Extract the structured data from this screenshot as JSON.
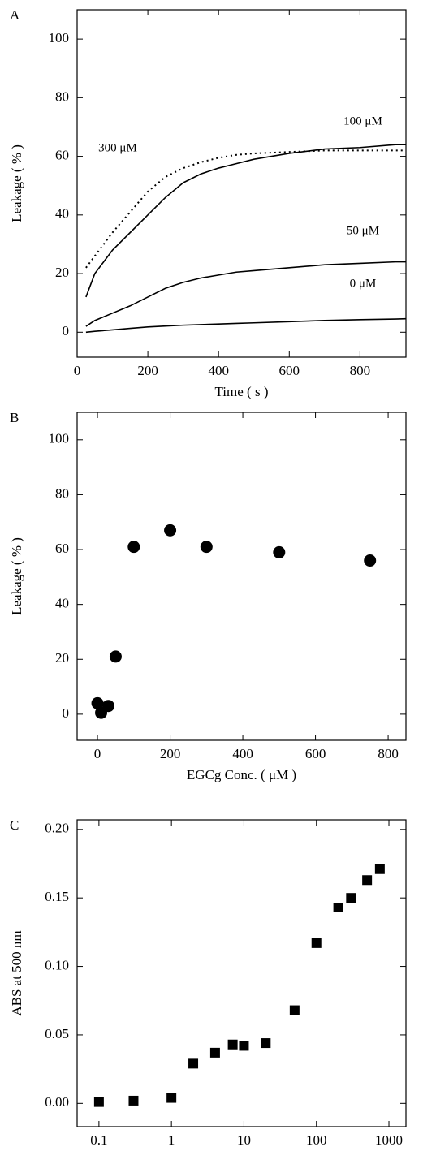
{
  "chart_data": [
    {
      "type": "line",
      "panel": "A",
      "xlabel": "Time ( s )",
      "ylabel": "Leakage ( % )",
      "x": [
        25,
        50,
        100,
        150,
        200,
        250,
        300,
        350,
        400,
        450,
        500,
        600,
        700,
        800,
        900,
        930
      ],
      "series": [
        {
          "name": "300 μM",
          "color": "#000000",
          "line_style": "dotted",
          "values": [
            22,
            26,
            34,
            41,
            48,
            53,
            56,
            58,
            59.5,
            60.5,
            61,
            61.5,
            62,
            62,
            62,
            62
          ]
        },
        {
          "name": "100 μM",
          "color": "#000000",
          "line_style": "solid",
          "values": [
            12,
            20,
            28,
            34,
            40,
            46,
            51,
            54,
            56,
            57.5,
            59,
            61,
            62.5,
            63,
            64,
            64
          ]
        },
        {
          "name": "50 μM",
          "color": "#000000",
          "line_style": "solid",
          "values": [
            2,
            4,
            6.5,
            9,
            12,
            15,
            17,
            18.5,
            19.5,
            20.5,
            21,
            22,
            23,
            23.5,
            24,
            24
          ]
        },
        {
          "name": "0 μM",
          "color": "#000000",
          "line_style": "solid",
          "values": [
            0,
            0.3,
            0.8,
            1.3,
            1.8,
            2.1,
            2.4,
            2.6,
            2.8,
            3,
            3.2,
            3.6,
            4,
            4.3,
            4.5,
            4.6
          ]
        }
      ],
      "xlim": [
        0,
        930
      ],
      "xticks": [
        0,
        200,
        400,
        600,
        800
      ],
      "ylim": [
        -8.5,
        110
      ],
      "yticks": [
        0,
        20,
        40,
        60,
        80,
        100
      ]
    },
    {
      "type": "scatter",
      "panel": "B",
      "xlabel": "EGCg Conc. ( μM )",
      "ylabel": "Leakage ( % )",
      "marker": "circle",
      "color": "#000000",
      "x": [
        0,
        10,
        30,
        50,
        100,
        200,
        300,
        500,
        750
      ],
      "values": [
        4,
        0.5,
        3,
        21,
        61,
        67,
        61,
        59,
        56
      ],
      "xlim": [
        -56,
        849
      ],
      "xticks": [
        0,
        200,
        400,
        600,
        800
      ],
      "ylim": [
        -9.5,
        110
      ],
      "yticks": [
        0,
        20,
        40,
        60,
        80,
        100
      ]
    },
    {
      "type": "scatter",
      "panel": "C",
      "xlabel": "EGCg Conc. ( μM )",
      "ylabel": "ABS at 500 nm",
      "marker": "square",
      "color": "#000000",
      "xscale": "log",
      "x": [
        0.1,
        0.3,
        1,
        2,
        4,
        7,
        10,
        20,
        50,
        100,
        200,
        300,
        500,
        750
      ],
      "values": [
        0.001,
        0.002,
        0.004,
        0.029,
        0.037,
        0.043,
        0.042,
        0.044,
        0.068,
        0.117,
        0.143,
        0.15,
        0.163,
        0.171
      ],
      "xlim": [
        0.05,
        1718
      ],
      "xticks": [
        0.1,
        1,
        10,
        100,
        1000
      ],
      "ylim": [
        -0.017,
        0.207
      ],
      "yticks": [
        {
          "value": 0,
          "label": "0.00"
        },
        {
          "value": 0.05,
          "label": "0.05"
        },
        {
          "value": 0.1,
          "label": "0.10"
        },
        {
          "value": 0.15,
          "label": "0.15"
        },
        {
          "value": 0.2,
          "label": "0.20"
        }
      ]
    }
  ]
}
